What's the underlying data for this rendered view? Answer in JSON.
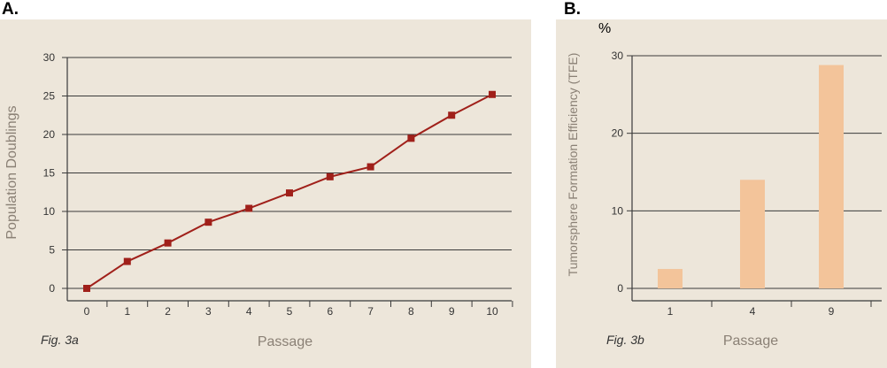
{
  "panels": {
    "a_letter": "A.",
    "b_letter": "B."
  },
  "chart_data": [
    {
      "type": "line",
      "xlabel": "Passage",
      "ylabel": "Population Doublings",
      "caption": "Fig. 3a",
      "x": [
        0,
        1,
        2,
        3,
        4,
        5,
        6,
        7,
        8,
        9,
        10
      ],
      "series": [
        {
          "values": [
            0,
            3.5,
            5.9,
            8.6,
            10.4,
            12.4,
            14.5,
            15.8,
            19.5,
            22.5,
            25.2
          ],
          "color": "#a0201a"
        }
      ],
      "yticks": [
        0,
        5,
        10,
        15,
        20,
        25,
        30
      ],
      "ylim": [
        0,
        30
      ],
      "grid": "horizontal"
    },
    {
      "type": "bar",
      "xlabel": "Passage",
      "ylabel": "Tumorsphere Formation Efficiency (TFE)",
      "unit": "%",
      "caption": "Fig. 3b",
      "categories": [
        "1",
        "4",
        "9"
      ],
      "values": [
        2.5,
        14,
        28.8
      ],
      "yticks": [
        0,
        10,
        20,
        30
      ],
      "ylim": [
        0,
        30
      ],
      "grid": "horizontal",
      "color": "#f3c49a"
    }
  ]
}
